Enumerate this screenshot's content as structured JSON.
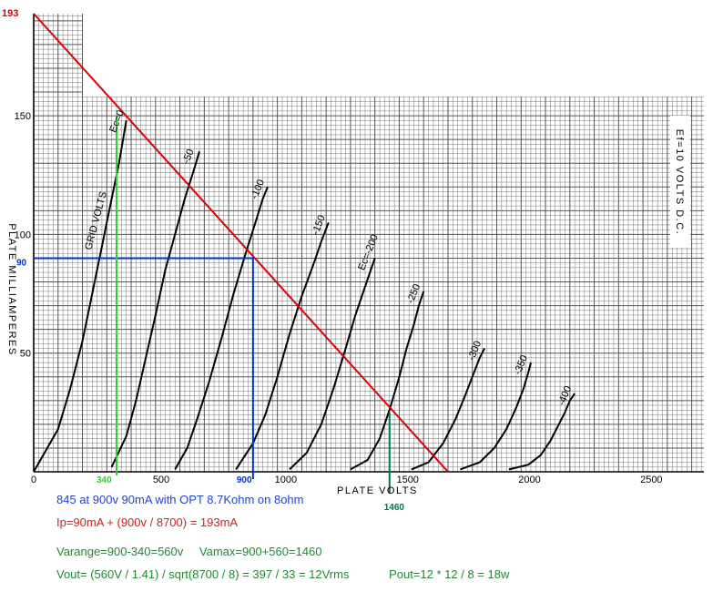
{
  "chart_data": {
    "type": "line",
    "xlabel": "PLATE VOLTS",
    "ylabel": "PLATE MILLIAMPERES",
    "side_label": "Ef=10 VOLTS D.C.",
    "grid_label": "GRID VOLTS",
    "xlim": [
      0,
      2750
    ],
    "ylim": [
      0,
      193
    ],
    "x_ticks": [
      "0",
      "500",
      "1000",
      "1500",
      "2000",
      "2500"
    ],
    "y_ticks": [
      "50",
      "100",
      "150"
    ],
    "grid": true,
    "curves": [
      {
        "label": "Ec=0",
        "x": [
          0,
          100,
          150,
          200,
          230,
          260,
          290,
          320,
          350,
          380
        ],
        "y": [
          0,
          18,
          35,
          55,
          70,
          85,
          100,
          115,
          130,
          148
        ]
      },
      {
        "label": "-50",
        "x": [
          320,
          380,
          420,
          460,
          500,
          540,
          580,
          620,
          660,
          680
        ],
        "y": [
          2,
          15,
          30,
          48,
          66,
          85,
          100,
          115,
          128,
          135
        ]
      },
      {
        "label": "-100",
        "x": [
          580,
          630,
          670,
          720,
          770,
          820,
          870,
          910,
          940,
          960
        ],
        "y": [
          1,
          10,
          22,
          38,
          56,
          75,
          92,
          105,
          115,
          120
        ]
      },
      {
        "label": "-150",
        "x": [
          830,
          900,
          950,
          1000,
          1050,
          1100,
          1150,
          1180,
          1210
        ],
        "y": [
          1,
          12,
          24,
          40,
          58,
          74,
          88,
          97,
          105
        ]
      },
      {
        "label": "Ec=-200",
        "x": [
          1050,
          1120,
          1180,
          1230,
          1280,
          1320,
          1350,
          1380,
          1400
        ],
        "y": [
          1,
          8,
          20,
          35,
          52,
          66,
          75,
          84,
          90
        ]
      },
      {
        "label": "-250",
        "x": [
          1300,
          1370,
          1420,
          1460,
          1500,
          1530,
          1560,
          1580,
          1600
        ],
        "y": [
          1,
          5,
          14,
          26,
          40,
          52,
          62,
          70,
          76
        ]
      },
      {
        "label": "-300",
        "x": [
          1550,
          1620,
          1680,
          1730,
          1770,
          1800,
          1830,
          1850
        ],
        "y": [
          1,
          4,
          12,
          22,
          32,
          40,
          48,
          52
        ]
      },
      {
        "label": "-350",
        "x": [
          1750,
          1830,
          1890,
          1940,
          1980,
          2010,
          2030,
          2040
        ],
        "y": [
          1,
          4,
          10,
          18,
          27,
          35,
          42,
          46
        ]
      },
      {
        "label": "-400",
        "x": [
          1950,
          2030,
          2080,
          2120,
          2150,
          2180,
          2200,
          2220
        ],
        "y": [
          1,
          3,
          7,
          13,
          19,
          25,
          30,
          33
        ]
      }
    ],
    "load_line": {
      "x": [
        0,
        1700
      ],
      "y": [
        193,
        0
      ],
      "color": "#dd0000",
      "label": "193"
    },
    "markers": [
      {
        "label": "340",
        "x": 340,
        "y": 150,
        "color": "#33cc33"
      },
      {
        "label": "1460",
        "x": 1460,
        "y": 25,
        "color": "#007744"
      }
    ],
    "quiescent": {
      "x": 900,
      "y": 90,
      "x_label": "900",
      "y_label": "90",
      "color": "#0033cc"
    }
  },
  "notes": {
    "line1": "845 at 900v 90mA with OPT 8.7Kohm on 8ohm",
    "line2": "Ip=90mA + (900v / 8700) = 193mA",
    "line3a": "Varange=900-340=560v",
    "line3b": "Vamax=900+560=1460",
    "line4a": "Vout= (560V / 1.41) / sqrt(8700 / 8) = 397 / 33 = 12Vrms",
    "line4b": "Pout=12 * 12 / 8 = 18w"
  },
  "colors": {
    "grid": "#555555",
    "curve": "#000000",
    "note_blue": "#2244cc",
    "note_red": "#cc2222",
    "note_green": "#228833"
  }
}
